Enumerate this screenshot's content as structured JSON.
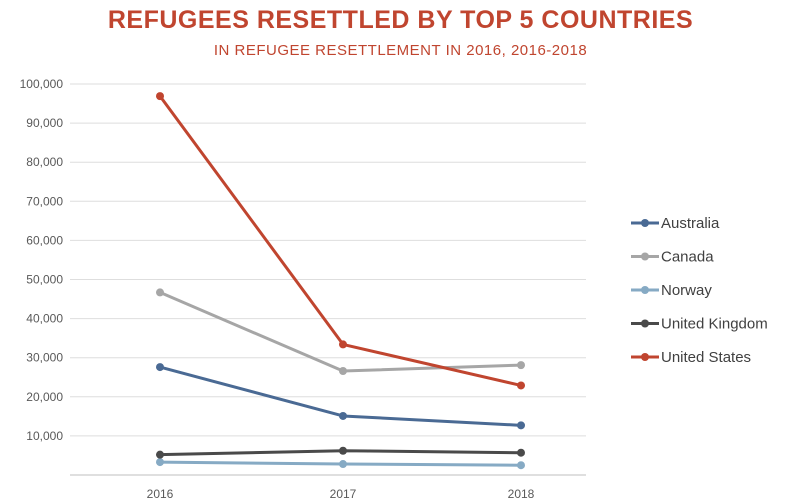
{
  "chart_data": {
    "type": "line",
    "title": "REFUGEES RESETTLED BY TOP 5 COUNTRIES",
    "subtitle": "IN REFUGEE RESETTLEMENT IN 2016, 2016-2018",
    "xlabel": "",
    "ylabel": "",
    "categories": [
      "2016",
      "2017",
      "2018"
    ],
    "ylim": [
      0,
      100000
    ],
    "yticks": [
      "",
      "10,000",
      "20,000",
      "30,000",
      "40,000",
      "50,000",
      "60,000",
      "70,000",
      "80,000",
      "90,000",
      "100,000"
    ],
    "grid": true,
    "legend_position": "right",
    "series": [
      {
        "name": "Australia",
        "color": "#4a6a94",
        "values": [
          27600,
          15100,
          12700
        ]
      },
      {
        "name": "Canada",
        "color": "#a6a6a6",
        "values": [
          46700,
          26600,
          28100
        ]
      },
      {
        "name": "Norway",
        "color": "#86aac4",
        "values": [
          3300,
          2800,
          2500
        ]
      },
      {
        "name": "United Kingdom",
        "color": "#4a4a4a",
        "values": [
          5200,
          6200,
          5700
        ]
      },
      {
        "name": "United States",
        "color": "#c0452f",
        "values": [
          96900,
          33400,
          22900
        ]
      }
    ]
  }
}
